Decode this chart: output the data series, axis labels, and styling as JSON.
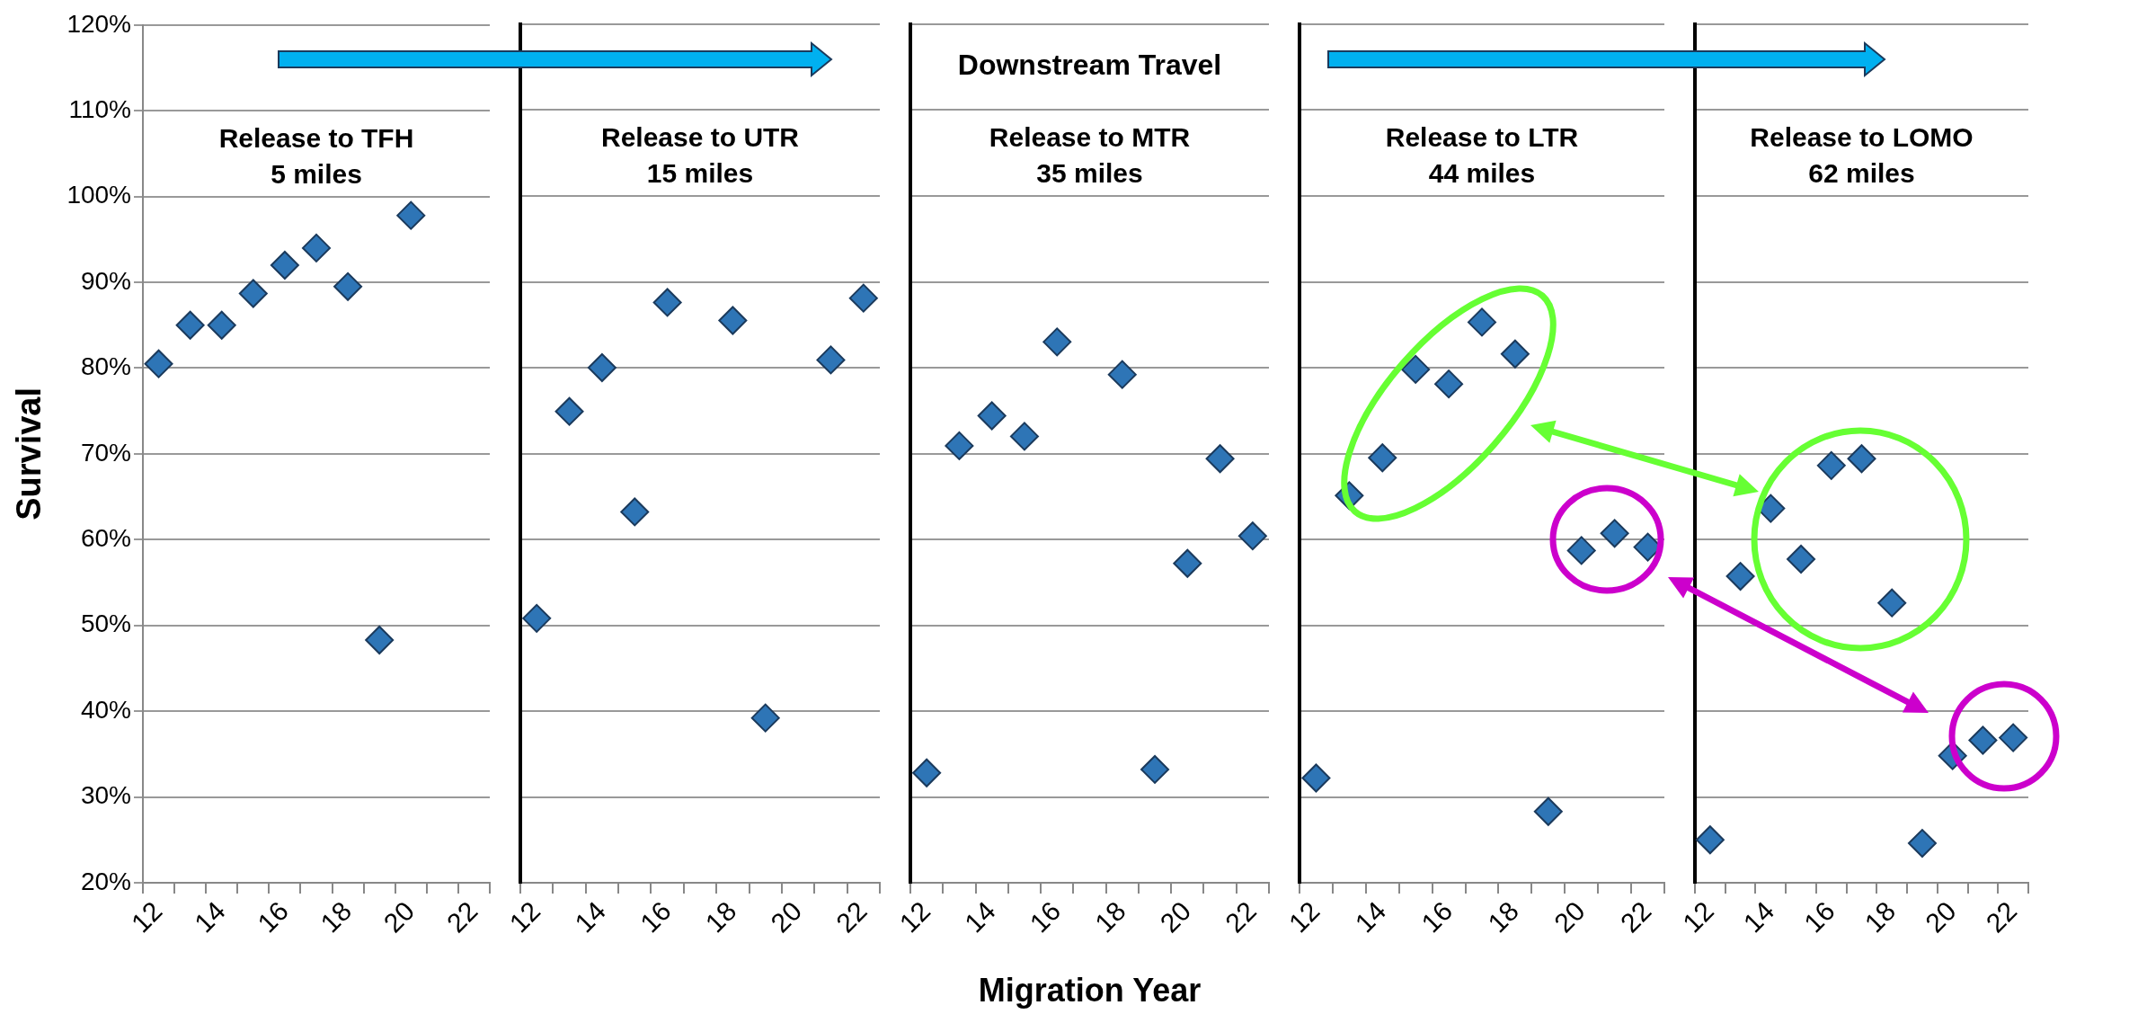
{
  "chart_data": [
    {
      "type": "scatter",
      "title": "Release to TFH",
      "subtitle": "5 miles",
      "ylabel": "Survival",
      "categories": [
        "12",
        null,
        "14",
        null,
        "16",
        null,
        "18",
        null,
        "20",
        null,
        "22"
      ],
      "values": [
        80.5,
        85,
        85,
        88.7,
        92,
        94,
        89.5,
        48.3,
        97.8,
        null,
        null
      ],
      "color": "#2e75b6",
      "marker": "diamond",
      "ylim": [
        20,
        120
      ],
      "yticks": [
        {
          "value": 20,
          "label": "20%"
        },
        {
          "value": 30,
          "label": "30%"
        },
        {
          "value": 40,
          "label": "40%"
        },
        {
          "value": 50,
          "label": "50%"
        },
        {
          "value": 60,
          "label": "60%"
        },
        {
          "value": 70,
          "label": "70%"
        },
        {
          "value": 80,
          "label": "80%"
        },
        {
          "value": 90,
          "label": "90%"
        },
        {
          "value": 100,
          "label": "100%"
        },
        {
          "value": 110,
          "label": "110%"
        },
        {
          "value": 120,
          "label": "120%"
        }
      ],
      "grid": "y"
    },
    {
      "type": "scatter",
      "title": "Release to UTR",
      "subtitle": "15 miles",
      "categories": [
        "12",
        null,
        "14",
        null,
        "16",
        null,
        "18",
        null,
        "20",
        null,
        "22"
      ],
      "values": [
        50.8,
        74.9,
        80,
        63.2,
        87.6,
        null,
        85.5,
        39.2,
        null,
        80.9,
        88.1
      ],
      "color": "#2e75b6",
      "marker": "diamond",
      "ylim": [
        20,
        120
      ],
      "yticks": [
        20,
        30,
        40,
        50,
        60,
        70,
        80,
        90,
        100,
        110,
        120
      ],
      "grid": "y",
      "tick_labels": "x"
    },
    {
      "type": "scatter",
      "title": "Release to MTR",
      "subtitle": "35 miles",
      "xlabel": "Migration Year",
      "annotations": [
        "Downstream Travel"
      ],
      "categories": [
        "12",
        null,
        "14",
        null,
        "16",
        null,
        "18",
        null,
        "20",
        null,
        "22"
      ],
      "values": [
        32.8,
        70.9,
        74.4,
        72,
        83,
        null,
        79.2,
        33.2,
        57.2,
        69.4,
        60.4
      ],
      "color": "#2e75b6",
      "marker": "diamond",
      "ylim": [
        20,
        120
      ],
      "yticks": [
        20,
        30,
        40,
        50,
        60,
        70,
        80,
        90,
        100,
        110,
        120
      ],
      "grid": "y",
      "tick_labels": "x"
    },
    {
      "type": "scatter",
      "title": "Release to LTR",
      "subtitle": "44 miles",
      "categories": [
        "12",
        null,
        "14",
        null,
        "16",
        null,
        "18",
        null,
        "20",
        null,
        "22"
      ],
      "values": [
        32.2,
        65.1,
        69.5,
        79.8,
        78.1,
        85.3,
        81.6,
        28.3,
        58.7,
        60.7,
        59.1
      ],
      "color": "#2e75b6",
      "marker": "diamond",
      "ylim": [
        20,
        120
      ],
      "yticks": [
        20,
        30,
        40,
        50,
        60,
        70,
        80,
        90,
        100,
        110,
        120
      ],
      "grid": "y",
      "tick_labels": "x"
    },
    {
      "type": "scatter",
      "title": "Release to LOMO",
      "subtitle": "62 miles",
      "categories": [
        "12",
        null,
        "14",
        null,
        "16",
        null,
        "18",
        null,
        "20",
        null,
        "22"
      ],
      "values": [
        25,
        55.7,
        63.6,
        57.7,
        68.6,
        69.4,
        52.6,
        24.6,
        34.8,
        36.6,
        36.9
      ],
      "color": "#2e75b6",
      "marker": "diamond",
      "ylim": [
        20,
        120
      ],
      "yticks": [
        20,
        30,
        40,
        50,
        60,
        70,
        80,
        90,
        100,
        110,
        120
      ],
      "grid": "y",
      "tick_labels": "x"
    }
  ]
}
